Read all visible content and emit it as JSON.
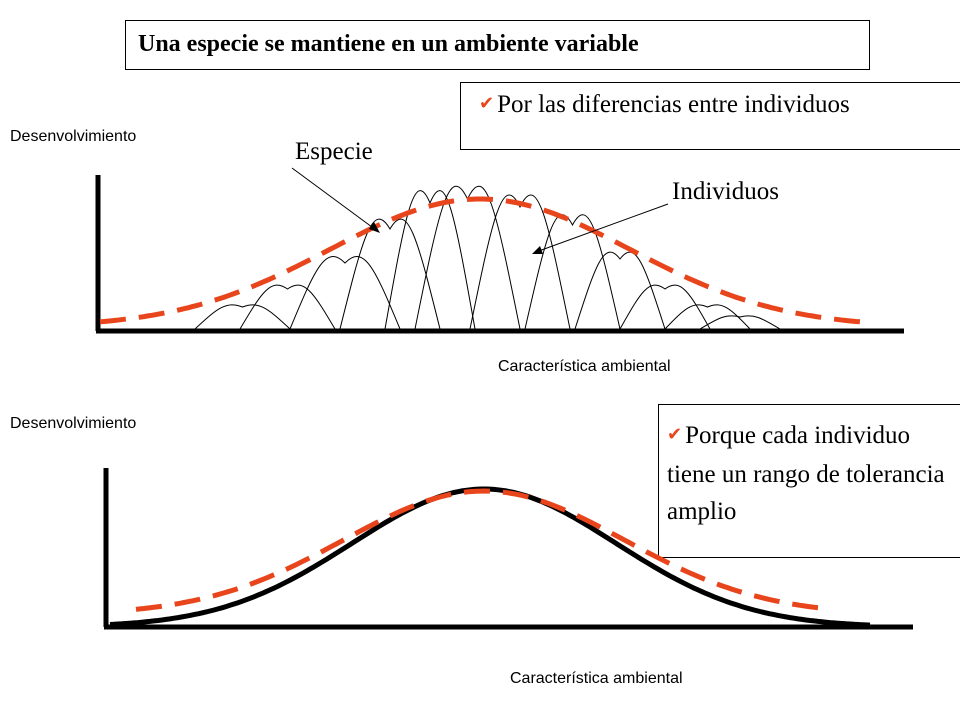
{
  "title": "Una especie se mantiene en un ambiente variable",
  "note_top": "Por las diferencias entre individuos",
  "note_bottom": "Porque cada individuo tiene un rango de tolerancia amplio",
  "top_chart": {
    "ylabel": "Desenvolvimiento",
    "xlabel": "Característica ambiental",
    "species_label": "Especie",
    "individuals_label": "Individuos"
  },
  "bottom_chart": {
    "ylabel": "Desenvolvimiento",
    "xlabel": "Característica ambiental"
  },
  "colors": {
    "species_curve": "#e8451c",
    "individual_curves": "#000000",
    "axes": "#000000",
    "check": "#e8451c"
  },
  "chart_data": [
    {
      "type": "line",
      "title": "",
      "xlabel": "Característica ambiental",
      "ylabel": "Desenvolvimiento",
      "series": [
        {
          "name": "Especie",
          "style": "dashed",
          "color": "#e8451c"
        },
        {
          "name": "Individuos",
          "style": "solid",
          "color": "#000000"
        }
      ]
    },
    {
      "type": "line",
      "title": "",
      "xlabel": "Característica ambiental",
      "ylabel": "Desenvolvimiento",
      "series": [
        {
          "style": "solid",
          "color": "#000000"
        },
        {
          "style": "dashed",
          "color": "#e8451c"
        }
      ]
    }
  ]
}
